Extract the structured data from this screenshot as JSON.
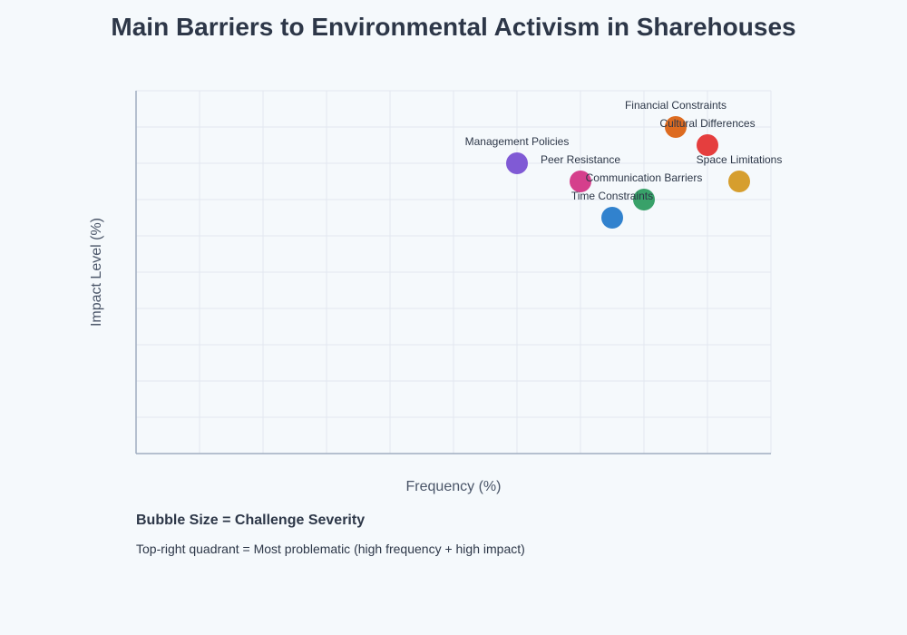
{
  "chart_data": {
    "type": "scatter",
    "title": "Main Barriers to Environmental Activism in Sharehouses",
    "xlabel": "Frequency (%)",
    "ylabel": "Impact Level (%)",
    "xlim": [
      0,
      100
    ],
    "ylim": [
      0,
      100
    ],
    "grid": true,
    "points": [
      {
        "label": "Management Policies",
        "x": 60,
        "y": 80,
        "color": "#805ad5"
      },
      {
        "label": "Peer Resistance",
        "x": 70,
        "y": 75,
        "color": "#d53f8c"
      },
      {
        "label": "Financial Constraints",
        "x": 85,
        "y": 90,
        "color": "#dd6b20"
      },
      {
        "label": "Cultural Differences",
        "x": 90,
        "y": 85,
        "color": "#e53e3e"
      },
      {
        "label": "Space Limitations",
        "x": 95,
        "y": 75,
        "color": "#d69e2e"
      },
      {
        "label": "Communication Barriers",
        "x": 80,
        "y": 70,
        "color": "#38a169"
      },
      {
        "label": "Time Constraints",
        "x": 75,
        "y": 65,
        "color": "#3182ce"
      }
    ]
  },
  "notes": {
    "title": "Bubble Size = Challenge Severity",
    "text": "Top-right quadrant = Most problematic (high frequency + high impact)"
  }
}
